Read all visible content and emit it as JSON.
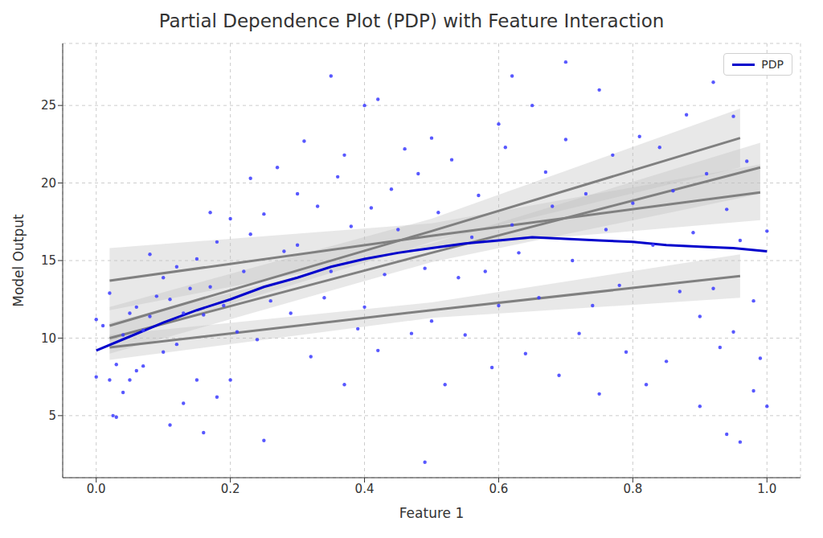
{
  "chart_data": {
    "type": "line",
    "title": "Partial Dependence Plot (PDP) with Feature Interaction",
    "x_label": "Feature 1",
    "y_label": "Model Output",
    "xlim": [
      -0.05,
      1.05
    ],
    "xticks": [
      {
        "value": 0,
        "label": "0.0"
      },
      0.2,
      0.4,
      0.6,
      0.8,
      {
        "value": 1,
        "label": "1.0"
      }
    ],
    "ylim": [
      1,
      29
    ],
    "yticks": [
      5,
      10,
      15,
      20,
      25
    ],
    "grid": true,
    "legend": "upper right",
    "series": [
      {
        "type": "scatter",
        "color": "#3b3bff",
        "x": [
          0.0,
          0.0,
          0.01,
          0.02,
          0.02,
          0.025,
          0.03,
          0.03,
          0.04,
          0.04,
          0.05,
          0.05,
          0.06,
          0.06,
          0.07,
          0.07,
          0.08,
          0.08,
          0.09,
          0.1,
          0.1,
          0.11,
          0.11,
          0.12,
          0.12,
          0.13,
          0.13,
          0.14,
          0.15,
          0.15,
          0.16,
          0.16,
          0.17,
          0.17,
          0.18,
          0.18,
          0.19,
          0.2,
          0.2,
          0.21,
          0.22,
          0.23,
          0.23,
          0.24,
          0.25,
          0.25,
          0.26,
          0.27,
          0.28,
          0.29,
          0.3,
          0.3,
          0.31,
          0.32,
          0.33,
          0.34,
          0.35,
          0.35,
          0.36,
          0.37,
          0.37,
          0.38,
          0.39,
          0.4,
          0.4,
          0.41,
          0.42,
          0.42,
          0.43,
          0.44,
          0.45,
          0.46,
          0.47,
          0.48,
          0.49,
          0.49,
          0.5,
          0.5,
          0.51,
          0.52,
          0.53,
          0.54,
          0.55,
          0.56,
          0.57,
          0.58,
          0.59,
          0.6,
          0.6,
          0.61,
          0.62,
          0.62,
          0.63,
          0.64,
          0.65,
          0.66,
          0.67,
          0.68,
          0.69,
          0.7,
          0.7,
          0.71,
          0.72,
          0.73,
          0.74,
          0.75,
          0.75,
          0.76,
          0.77,
          0.78,
          0.79,
          0.8,
          0.81,
          0.82,
          0.83,
          0.84,
          0.85,
          0.86,
          0.87,
          0.88,
          0.89,
          0.9,
          0.9,
          0.91,
          0.92,
          0.92,
          0.93,
          0.94,
          0.94,
          0.95,
          0.95,
          0.96,
          0.96,
          0.97,
          0.98,
          0.98,
          0.99,
          1.0,
          1.0
        ],
        "values": [
          7.5,
          11.2,
          10.8,
          7.3,
          12.9,
          5.0,
          4.9,
          8.3,
          10.2,
          6.5,
          7.3,
          11.6,
          7.9,
          12.0,
          8.2,
          10.5,
          11.4,
          15.4,
          12.7,
          9.1,
          13.9,
          4.4,
          12.5,
          9.6,
          14.6,
          5.8,
          11.6,
          13.2,
          7.3,
          15.1,
          3.9,
          11.5,
          13.3,
          18.1,
          6.2,
          16.2,
          12.1,
          7.3,
          17.7,
          10.4,
          14.3,
          16.7,
          20.3,
          9.9,
          3.4,
          18.0,
          12.4,
          21.0,
          15.6,
          11.6,
          16.0,
          19.3,
          22.7,
          8.8,
          18.5,
          12.6,
          26.9,
          14.3,
          20.4,
          7.0,
          21.8,
          17.2,
          10.6,
          25.0,
          12.0,
          18.4,
          9.2,
          25.4,
          14.1,
          19.6,
          17.0,
          22.2,
          10.3,
          20.6,
          2.0,
          14.5,
          11.1,
          22.9,
          18.1,
          7.0,
          21.5,
          13.9,
          10.2,
          16.5,
          19.2,
          14.3,
          8.1,
          23.8,
          12.1,
          22.3,
          26.9,
          17.3,
          15.5,
          9.0,
          25.0,
          12.6,
          20.7,
          18.5,
          7.6,
          22.8,
          27.8,
          15.0,
          10.3,
          19.3,
          12.1,
          26.0,
          6.4,
          17.0,
          21.8,
          13.4,
          9.1,
          18.7,
          23.0,
          7.0,
          16.0,
          22.3,
          8.5,
          19.5,
          13.0,
          24.4,
          16.8,
          11.4,
          5.6,
          20.6,
          26.5,
          13.2,
          9.4,
          3.8,
          18.3,
          24.3,
          10.4,
          3.3,
          16.3,
          21.4,
          6.6,
          12.4,
          8.7,
          5.6,
          16.9
        ]
      },
      {
        "type": "line",
        "color": "#808080",
        "x": [
          0.02,
          0.5,
          0.99
        ],
        "values": [
          13.7,
          16.6,
          19.4
        ],
        "lower": [
          11.8,
          15.8,
          17.6
        ],
        "upper": [
          15.8,
          17.4,
          21.2
        ]
      },
      {
        "type": "line",
        "color": "#808080",
        "x": [
          0.02,
          0.5,
          0.96
        ],
        "values": [
          10.8,
          16.9,
          22.9
        ],
        "lower": [
          9.8,
          16.2,
          21.0
        ],
        "upper": [
          12.0,
          17.7,
          24.8
        ]
      },
      {
        "type": "line",
        "color": "#808080",
        "x": [
          0.02,
          0.5,
          0.99
        ],
        "values": [
          10.0,
          15.5,
          21.0
        ],
        "lower": [
          9.0,
          14.9,
          19.3
        ],
        "upper": [
          11.0,
          16.1,
          22.6
        ]
      },
      {
        "type": "line",
        "color": "#808080",
        "x": [
          0.02,
          0.5,
          0.96
        ],
        "values": [
          9.4,
          11.8,
          14.0
        ],
        "lower": [
          8.6,
          11.3,
          12.6
        ],
        "upper": [
          10.2,
          12.3,
          15.4
        ]
      },
      {
        "name": "PDP",
        "type": "line",
        "color": "#0000cc",
        "x": [
          0.0,
          0.05,
          0.1,
          0.15,
          0.2,
          0.25,
          0.3,
          0.35,
          0.4,
          0.45,
          0.5,
          0.55,
          0.6,
          0.65,
          0.7,
          0.75,
          0.8,
          0.85,
          0.9,
          0.95,
          1.0
        ],
        "values": [
          9.2,
          10.1,
          11.0,
          11.8,
          12.5,
          13.3,
          13.9,
          14.6,
          15.1,
          15.5,
          15.8,
          16.1,
          16.3,
          16.5,
          16.4,
          16.3,
          16.2,
          16.0,
          15.9,
          15.8,
          15.6
        ]
      }
    ]
  }
}
